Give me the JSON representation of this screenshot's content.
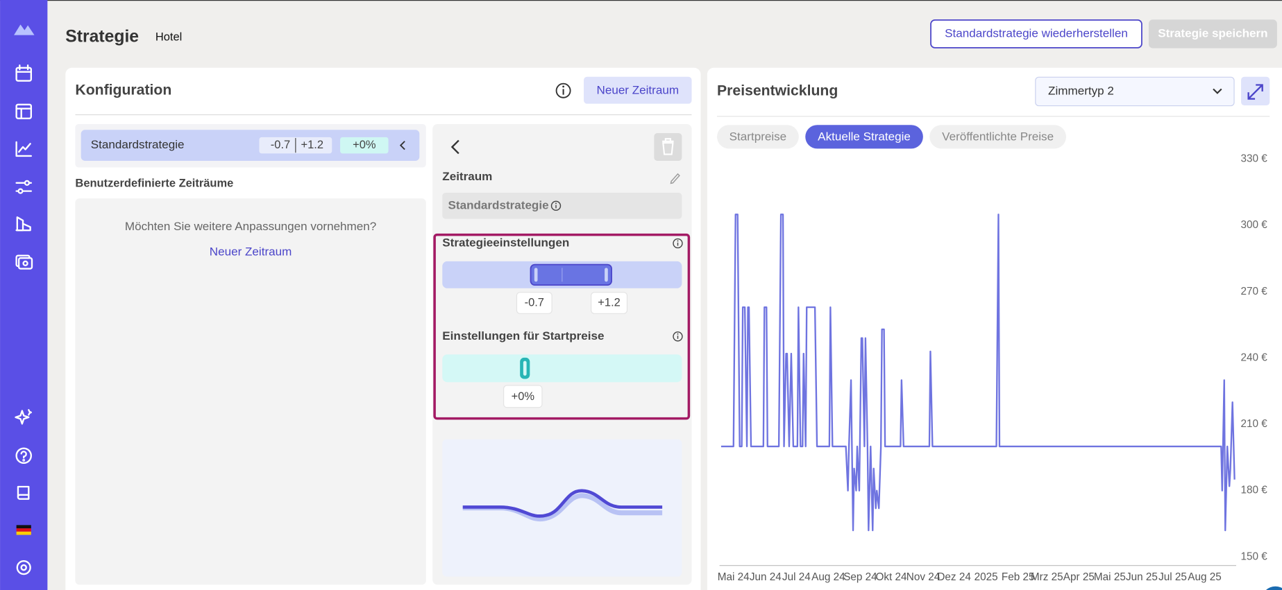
{
  "header": {
    "title": "Strategie",
    "hotel": "Hotel",
    "reset_button": "Standardstrategie wiederherstellen",
    "save_button": "Strategie speichern"
  },
  "configuration": {
    "title": "Konfiguration",
    "new_period_button": "Neuer Zeitraum",
    "default_strategy": {
      "name": "Standardstrategie",
      "lower": "-0.7",
      "upper": "+1.2",
      "start_price": "+0%"
    },
    "custom_periods_title": "Benutzerdefinierte Zeiträume",
    "empty_text": "Möchten Sie weitere Anpassungen vornehmen?",
    "empty_link": "Neuer Zeitraum"
  },
  "details": {
    "period_label": "Zeitraum",
    "period_value": "Standardstrategie",
    "strategy_settings_title": "Strategieeinstellungen",
    "strategy_lower": "-0.7",
    "strategy_upper": "+1.2",
    "start_price_title": "Einstellungen für Startpreise",
    "start_price_value": "+0%"
  },
  "price_panel": {
    "title": "Preisentwicklung",
    "room_type": "Zimmertyp 2",
    "tabs": [
      "Startpreise",
      "Aktuelle Strategie",
      "Veröffentlichte Preise"
    ]
  },
  "chart_data": {
    "type": "line",
    "x": [
      -12,
      0,
      2,
      4,
      6,
      8,
      9,
      11,
      13,
      14,
      15,
      17,
      29,
      30,
      32,
      33,
      44,
      46,
      48,
      49,
      51,
      52,
      54,
      56,
      58,
      62,
      63,
      65,
      67,
      68,
      70,
      71,
      79,
      81,
      93,
      94,
      96,
      109,
      111,
      112,
      114,
      116,
      117,
      119,
      120,
      122,
      124,
      125,
      127,
      128,
      130,
      131,
      133,
      135,
      136,
      138,
      139,
      141,
      143,
      144,
      146,
      147,
      162,
      163,
      165,
      190,
      191,
      193,
      255,
      257,
      258,
      473,
      474,
      476,
      477,
      479,
      481,
      482,
      484,
      486
    ],
    "series": [
      {
        "color": "#6f74e0",
        "values": [
          200,
          200,
          305,
          305,
          200,
          200,
          263,
          263,
          200,
          263,
          263,
          200,
          200,
          263,
          263,
          200,
          200,
          305,
          305,
          200,
          242,
          242,
          200,
          242,
          200,
          200,
          263,
          200,
          200,
          242,
          200,
          263,
          263,
          200,
          200,
          263,
          200,
          200,
          180,
          200,
          230,
          162,
          190,
          180,
          200,
          180,
          249,
          249,
          200,
          249,
          200,
          162,
          200,
          162,
          190,
          172,
          180,
          172,
          200,
          253,
          253,
          200,
          200,
          230,
          200,
          200,
          243,
          200,
          200,
          305,
          200,
          200,
          180,
          230,
          162,
          200,
          182,
          190,
          220,
          185
        ]
      }
    ],
    "xlim": [
      -12,
      486
    ],
    "ylim": [
      146,
      333
    ],
    "xticks": [
      {
        "value": 0,
        "label": "Mai 24"
      },
      {
        "value": 31,
        "label": "Jun 24"
      },
      {
        "value": 61,
        "label": "Jul 24"
      },
      {
        "value": 92,
        "label": "Aug 24"
      },
      {
        "value": 123,
        "label": "Sep 24"
      },
      {
        "value": 153,
        "label": "Okt 24"
      },
      {
        "value": 184,
        "label": "Nov 24"
      },
      {
        "value": 214,
        "label": "Dez 24"
      },
      {
        "value": 245,
        "label": "2025"
      },
      {
        "value": 276,
        "label": "Feb 25"
      },
      {
        "value": 304,
        "label": "Mrz 25"
      },
      {
        "value": 335,
        "label": "Apr 25"
      },
      {
        "value": 365,
        "label": "Mai 25"
      },
      {
        "value": 396,
        "label": "Jun 25"
      },
      {
        "value": 426,
        "label": "Jul 25"
      },
      {
        "value": 457,
        "label": "Aug 25"
      }
    ],
    "yticks": [
      {
        "value": 150,
        "label": "150 €"
      },
      {
        "value": 180,
        "label": "180 €"
      },
      {
        "value": 210,
        "label": "210 €"
      },
      {
        "value": 240,
        "label": "240 €"
      },
      {
        "value": 270,
        "label": "270 €"
      },
      {
        "value": 300,
        "label": "300 €"
      },
      {
        "value": 330,
        "label": "330 €"
      }
    ]
  }
}
